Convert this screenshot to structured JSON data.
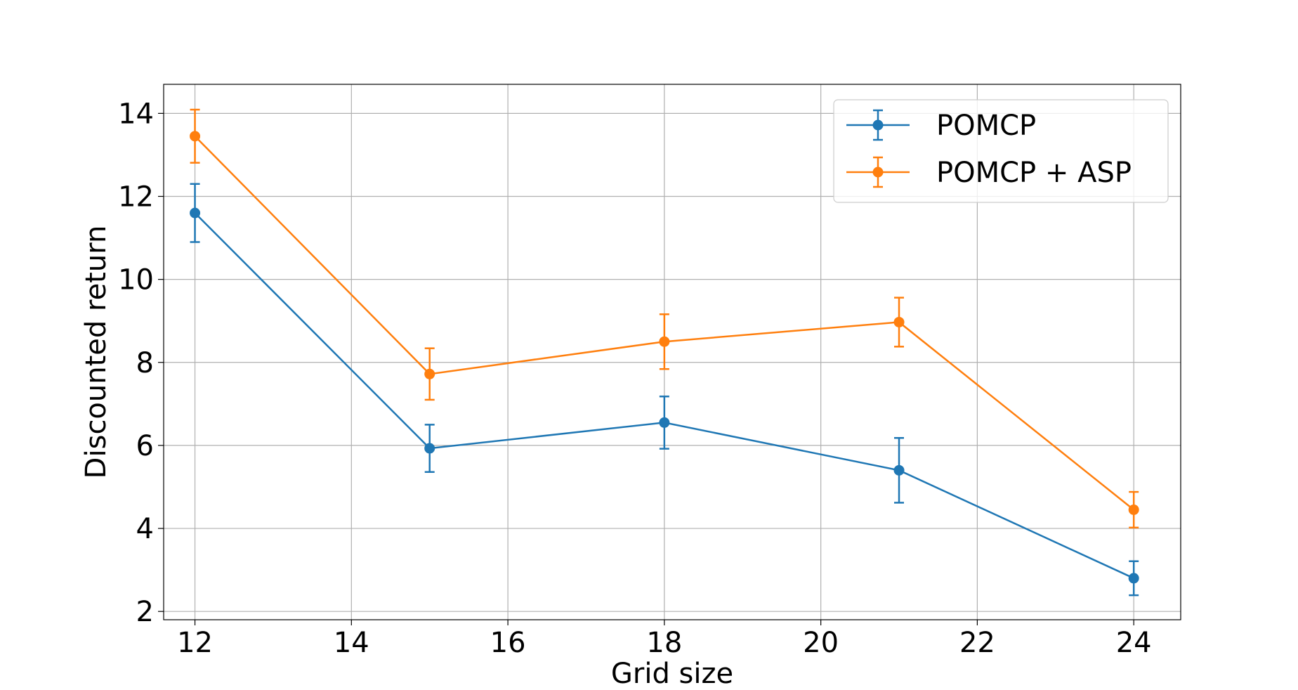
{
  "chart_data": {
    "type": "line",
    "title": "",
    "xlabel": "Grid size",
    "ylabel": "Discounted return",
    "x": [
      12,
      15,
      18,
      21,
      24
    ],
    "xticks": [
      12,
      14,
      16,
      18,
      20,
      22,
      24
    ],
    "yticks": [
      2,
      4,
      6,
      8,
      10,
      12,
      14
    ],
    "xlim": [
      11.6,
      24.6
    ],
    "ylim": [
      1.8,
      14.7
    ],
    "grid": true,
    "legend_position": "top-right",
    "series": [
      {
        "name": "POMCP",
        "color": "#1f77b4",
        "values": [
          11.6,
          5.93,
          6.55,
          5.4,
          2.8
        ],
        "errors": [
          0.7,
          0.57,
          0.63,
          0.78,
          0.41
        ]
      },
      {
        "name": "POMCP + ASP",
        "color": "#ff7f0e",
        "values": [
          13.45,
          7.72,
          8.5,
          8.97,
          4.45
        ],
        "errors": [
          0.64,
          0.62,
          0.66,
          0.59,
          0.43
        ]
      }
    ]
  }
}
